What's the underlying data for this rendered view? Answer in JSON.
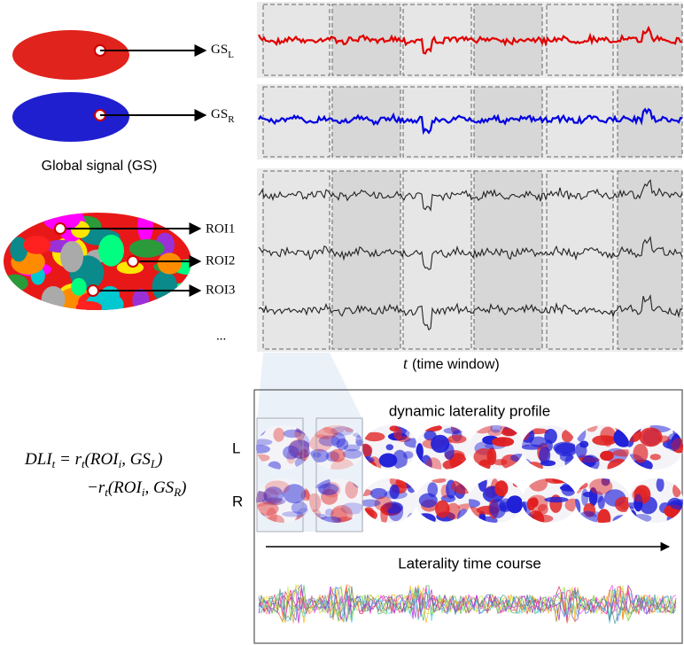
{
  "global_signal": {
    "left": {
      "base": "GS",
      "sub": "L"
    },
    "right": {
      "base": "GS",
      "sub": "R"
    },
    "caption": "Global signal (GS)"
  },
  "rois": {
    "labels": [
      "ROI1",
      "ROI2",
      "ROI3"
    ],
    "more": "..."
  },
  "time_axis": {
    "symbol": "t",
    "label": "(time window)"
  },
  "formula": {
    "line1": [
      {
        "text": "DLI"
      },
      {
        "sub": "t"
      },
      {
        "text": " = r"
      },
      {
        "sub": "t"
      },
      {
        "text": "(ROI"
      },
      {
        "sub": "i"
      },
      {
        "text": ", GS"
      },
      {
        "sub": "L"
      },
      {
        "text": ")"
      }
    ],
    "line2": [
      {
        "text": "−r"
      },
      {
        "sub": "t"
      },
      {
        "text": "(ROI"
      },
      {
        "sub": "i"
      },
      {
        "text": ", GS"
      },
      {
        "sub": "R"
      },
      {
        "text": ")"
      }
    ]
  },
  "profile": {
    "title": "dynamic laterality  profile",
    "row_left": "L",
    "row_right": "R",
    "course_title": "Laterality  time course"
  }
}
